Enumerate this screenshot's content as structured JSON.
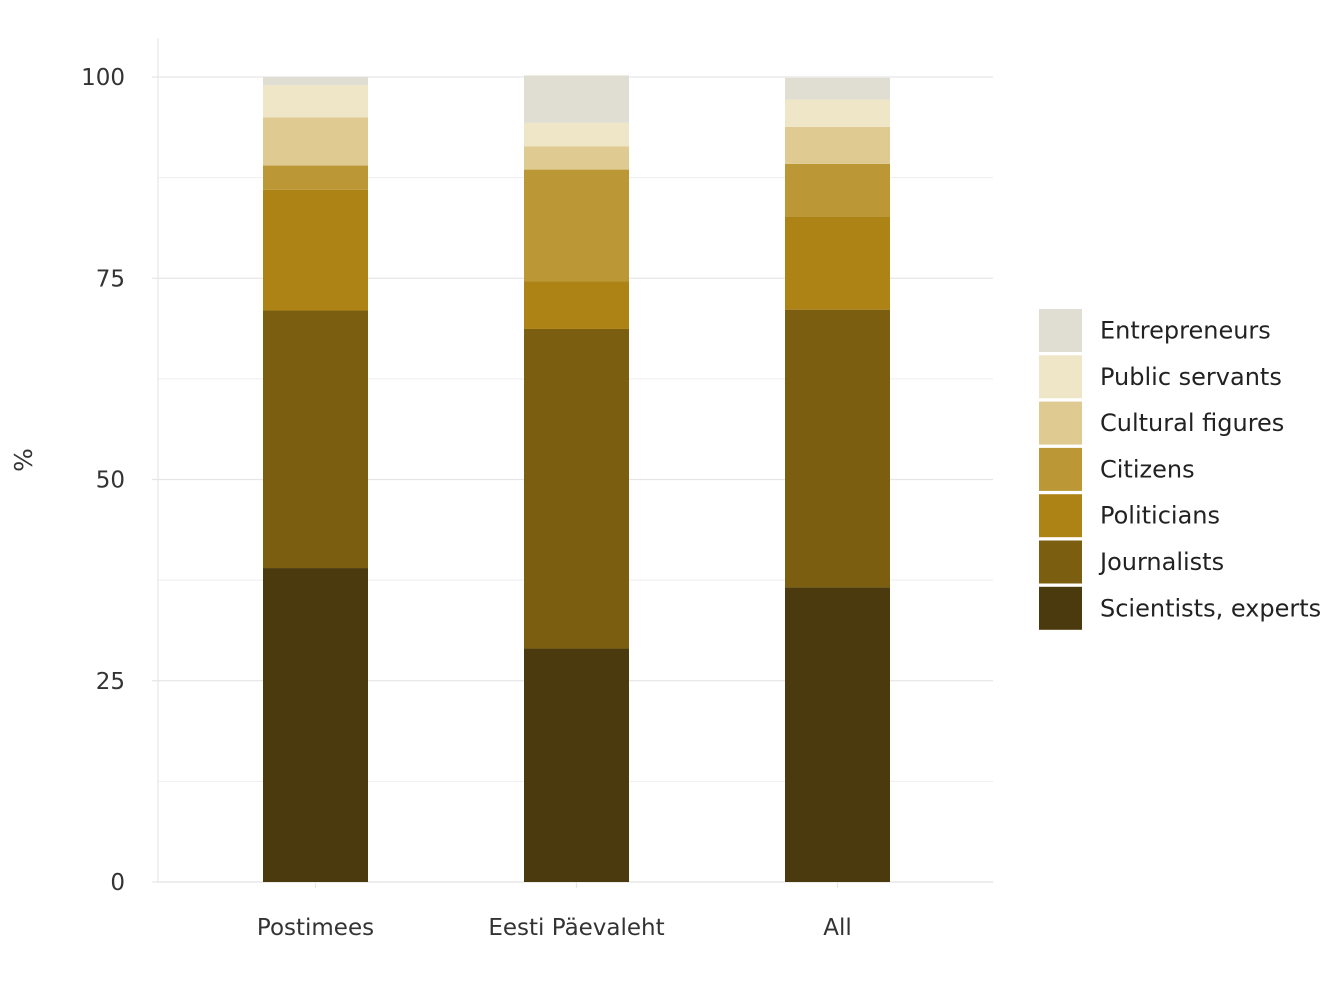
{
  "chart_data": {
    "type": "bar",
    "stacked": true,
    "categories": [
      "Postimees",
      "Eesti Päevaleht",
      "All"
    ],
    "ylabel": "%",
    "ylim": [
      0,
      100
    ],
    "yticks": [
      0,
      25,
      50,
      75,
      100
    ],
    "grid": true,
    "legend_position": "right",
    "series": [
      {
        "name": "Scientists, experts",
        "color": "#4a3a0d",
        "values": [
          39.0,
          29.0,
          36.6
        ]
      },
      {
        "name": "Journalists",
        "color": "#7b5e10",
        "values": [
          32.0,
          39.7,
          34.5
        ]
      },
      {
        "name": "Politicians",
        "color": "#ad8315",
        "values": [
          15.0,
          5.9,
          11.6
        ]
      },
      {
        "name": "Citizens",
        "color": "#bb9835",
        "values": [
          3.0,
          13.9,
          6.5
        ]
      },
      {
        "name": "Cultural figures",
        "color": "#dfcb92",
        "values": [
          6.0,
          2.9,
          4.6
        ]
      },
      {
        "name": "Public servants",
        "color": "#efe6c8",
        "values": [
          4.0,
          2.9,
          3.4
        ]
      },
      {
        "name": "Entrepreneurs",
        "color": "#e0ded2",
        "values": [
          1.0,
          5.9,
          2.7
        ]
      }
    ]
  }
}
